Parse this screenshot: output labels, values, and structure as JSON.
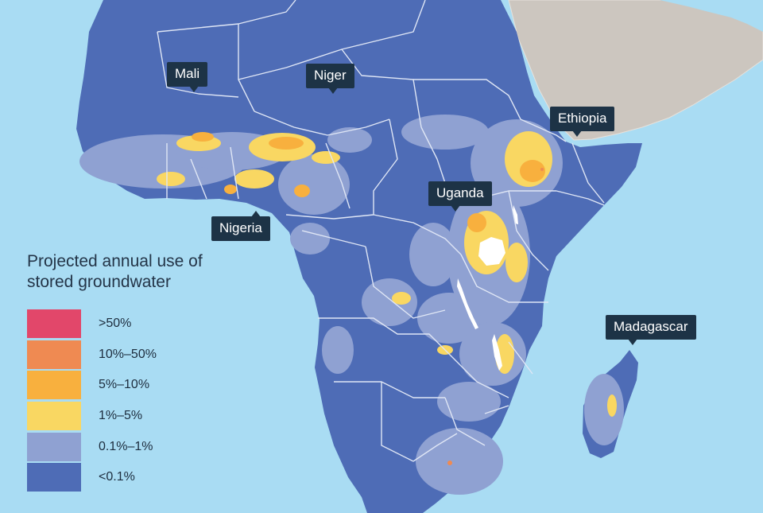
{
  "legend": {
    "title_line1": "Projected annual use of",
    "title_line2": "stored groundwater",
    "items": [
      {
        "label": ">50%",
        "color": "#e2476a"
      },
      {
        "label": "10%–50%",
        "color": "#ef8a52"
      },
      {
        "label": "5%–10%",
        "color": "#f8b03e"
      },
      {
        "label": "1%–5%",
        "color": "#f9d762"
      },
      {
        "label": "0.1%–1%",
        "color": "#8fa1d2"
      },
      {
        "label": "<0.1%",
        "color": "#4e6cb6"
      }
    ]
  },
  "labels": {
    "mali": "Mali",
    "niger": "Niger",
    "ethiopia": "Ethiopia",
    "uganda": "Uganda",
    "nigeria": "Nigeria",
    "madagascar": "Madagascar"
  },
  "colors": {
    "ocean": "#a9dcf3",
    "land_other": "#ccc6bf",
    "africa_base": "#4e6cb6",
    "border": "#dfe6f5"
  }
}
